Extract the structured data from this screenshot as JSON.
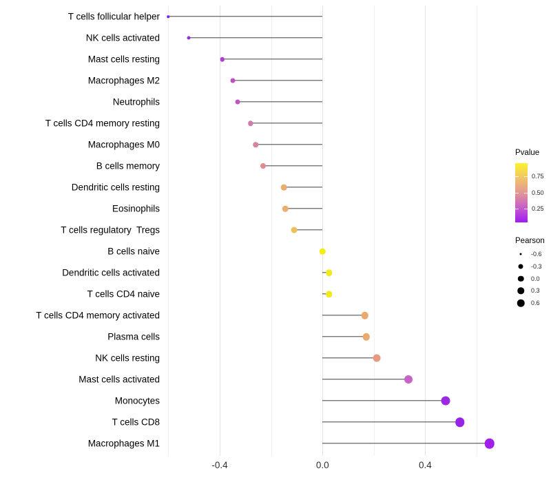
{
  "chart_data": {
    "type": "lollipop",
    "orientation": "horizontal",
    "xlabel": "",
    "ylabel": "",
    "xlim": [
      -0.62,
      0.71
    ],
    "grid": "vertical-only",
    "stem_color": "#3f3f3f",
    "x_ticks": [
      {
        "value": -0.4,
        "label": "-0.4"
      },
      {
        "value": 0.0,
        "label": "0.0"
      },
      {
        "value": 0.4,
        "label": "0.4"
      }
    ],
    "x_minor_gridlines": [
      -0.6,
      -0.2,
      0.2,
      0.6
    ],
    "rows": [
      {
        "label": "T cells follicular helper",
        "pearson": -0.6,
        "color": "#7e22d8",
        "size": 3.5
      },
      {
        "label": "NK cells activated",
        "pearson": -0.52,
        "color": "#9330db",
        "size": 5.0
      },
      {
        "label": "Mast cells resting",
        "pearson": -0.39,
        "color": "#ad3fd2",
        "size": 6.5
      },
      {
        "label": "Macrophages M2",
        "pearson": -0.35,
        "color": "#bd4fc7",
        "size": 7.0
      },
      {
        "label": "Neutrophils",
        "pearson": -0.33,
        "color": "#c155c3",
        "size": 7.0
      },
      {
        "label": "T cells CD4 memory resting",
        "pearson": -0.28,
        "color": "#d17aac",
        "size": 7.5
      },
      {
        "label": "Macrophages M0",
        "pearson": -0.26,
        "color": "#d884a1",
        "size": 7.5
      },
      {
        "label": "B cells memory",
        "pearson": -0.23,
        "color": "#df8b8f",
        "size": 8.0
      },
      {
        "label": "Dendritic cells resting",
        "pearson": -0.15,
        "color": "#eaae71",
        "size": 8.5
      },
      {
        "label": "Eosinophils",
        "pearson": -0.145,
        "color": "#eaae6f",
        "size": 8.5
      },
      {
        "label": "T cells regulatory  Tregs",
        "pearson": -0.11,
        "color": "#edbf56",
        "size": 9.0
      },
      {
        "label": "B cells naive",
        "pearson": 0.0,
        "color": "#f3ee16",
        "size": 8.5
      },
      {
        "label": "Dendritic cells activated",
        "pearson": 0.025,
        "color": "#f2ea1e",
        "size": 9.5
      },
      {
        "label": "T cells CD4 naive",
        "pearson": 0.025,
        "color": "#f2ea1e",
        "size": 9.5
      },
      {
        "label": "T cells CD4 memory activated",
        "pearson": 0.165,
        "color": "#eaaa6e",
        "size": 10.5
      },
      {
        "label": "Plasma cells",
        "pearson": 0.17,
        "color": "#eaaa6e",
        "size": 10.5
      },
      {
        "label": "NK cells resting",
        "pearson": 0.21,
        "color": "#e79982",
        "size": 11.0
      },
      {
        "label": "Mast cells activated",
        "pearson": 0.335,
        "color": "#c763c6",
        "size": 12.0
      },
      {
        "label": "Monocytes",
        "pearson": 0.48,
        "color": "#9d2ae2",
        "size": 13.0
      },
      {
        "label": "T cells CD8",
        "pearson": 0.535,
        "color": "#9823e6",
        "size": 13.5
      },
      {
        "label": "Macrophages M1",
        "pearson": 0.65,
        "color": "#a21eea",
        "size": 14.5
      }
    ],
    "legend": {
      "pvalue": {
        "title": "Pvalue",
        "gradient_bottom_to_top": [
          "#a01bf2",
          "#c55ecb",
          "#e29892",
          "#f0c46b",
          "#fbf32a"
        ],
        "ticks": [
          {
            "label": "0.75",
            "frac_from_bottom": 0.775
          },
          {
            "label": "0.50",
            "frac_from_bottom": 0.505
          },
          {
            "label": "0.25",
            "frac_from_bottom": 0.235
          }
        ]
      },
      "pearson": {
        "title": "Pearson",
        "items": [
          {
            "label": "-0.6",
            "size": 3.0
          },
          {
            "label": "-0.3",
            "size": 7.0
          },
          {
            "label": "0.0",
            "size": 8.5
          },
          {
            "label": "0.3",
            "size": 9.5
          },
          {
            "label": "0.6",
            "size": 10.5
          }
        ],
        "dot_color": "#000000"
      }
    }
  }
}
